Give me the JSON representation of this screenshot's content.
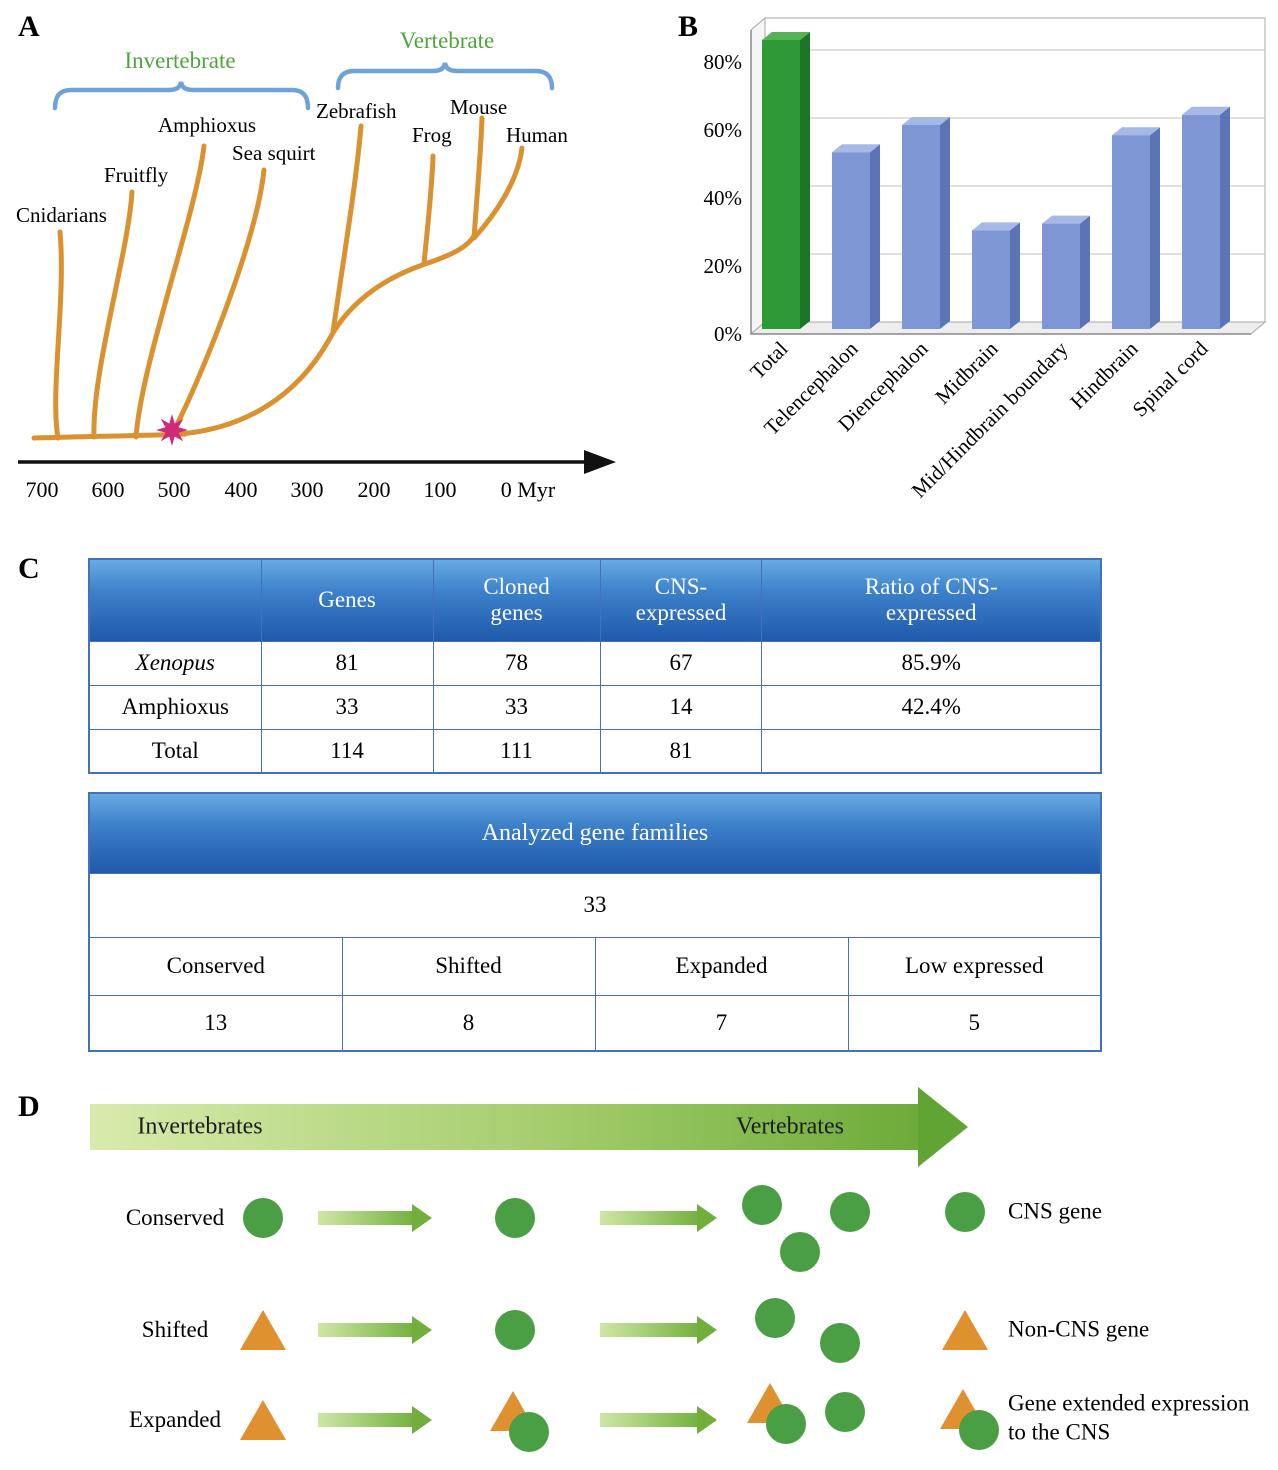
{
  "figure": {
    "panel_a_label": "A",
    "panel_b_label": "B",
    "panel_c_label": "C",
    "panel_d_label": "D"
  },
  "panel_a": {
    "clades": {
      "invertebrate": "Invertebrate",
      "vertebrate": "Vertebrate"
    },
    "species": [
      "Cnidarians",
      "Fruitfly",
      "Amphioxus",
      "Sea squirt",
      "Zebrafish",
      "Frog",
      "Mouse",
      "Human"
    ],
    "axis_ticks": [
      "700",
      "600",
      "500",
      "400",
      "300",
      "200",
      "100",
      "0 Myr"
    ],
    "colors": {
      "branch": "#d9922f",
      "brace": "#6ea3d9",
      "clade_text": "#4ea53c",
      "star": "#cf2a78"
    }
  },
  "chart_data": {
    "type": "bar",
    "title": "",
    "categories": [
      "Total",
      "Telencephalon",
      "Diencephalon",
      "Midbrain",
      "Mid/Hindbrain boundary",
      "Hindbrain",
      "Spinal cord"
    ],
    "values": [
      85,
      52,
      60,
      29,
      31,
      57,
      63
    ],
    "unit": "%",
    "ytick_values": [
      0,
      20,
      40,
      60,
      80
    ],
    "ytick_labels": [
      "0%",
      "20%",
      "40%",
      "60%",
      "80%"
    ],
    "ylim": [
      0,
      90
    ],
    "style": "3d-bar",
    "grid": true,
    "legend": "none",
    "colors": {
      "total": {
        "front": "#2e9a36",
        "side": "#1e7527",
        "top": "#55b257"
      },
      "default": {
        "front": "#7e96d4",
        "side": "#5a74b6",
        "top": "#a6b8e6"
      }
    }
  },
  "panel_c": {
    "table1": {
      "headers": [
        "",
        "Genes",
        "Cloned\ngenes",
        "CNS-\nexpressed",
        "Ratio of CNS-\nexpressed"
      ],
      "rows": [
        {
          "name": "Xenopus",
          "values": [
            "81",
            "78",
            "67",
            "85.9%"
          ]
        },
        {
          "name": "Amphioxus",
          "values": [
            "33",
            "33",
            "14",
            "42.4%"
          ]
        },
        {
          "name": "Total",
          "values": [
            "114",
            "111",
            "81",
            ""
          ]
        }
      ]
    },
    "table2": {
      "header": "Analyzed gene families",
      "total": "33",
      "categories": [
        "Conserved",
        "Shifted",
        "Expanded",
        "Low expressed"
      ],
      "values": [
        "13",
        "8",
        "7",
        "5"
      ]
    }
  },
  "panel_d": {
    "arrow_left_label": "Invertebrates",
    "arrow_right_label": "Vertebrates",
    "rows": [
      {
        "label": "Conserved",
        "stages": [
          [
            "circle"
          ],
          [
            "circle"
          ],
          [
            "circle",
            "circle",
            "circle"
          ]
        ]
      },
      {
        "label": "Shifted",
        "stages": [
          [
            "triangle"
          ],
          [
            "circle"
          ],
          [
            "circle",
            "circle"
          ]
        ]
      },
      {
        "label": "Expanded",
        "stages": [
          [
            "triangle"
          ],
          [
            "triangle-circle"
          ],
          [
            "triangle-circle",
            "circle"
          ]
        ]
      }
    ],
    "legend": [
      {
        "shape": "circle",
        "label": "CNS gene"
      },
      {
        "shape": "triangle",
        "label": "Non-CNS gene"
      },
      {
        "shape": "triangle-circle",
        "label": "Gene extended expression\nto the CNS"
      }
    ],
    "colors": {
      "cns_green": "#4a9e44",
      "non_cns_orange": "#e0912f"
    }
  }
}
